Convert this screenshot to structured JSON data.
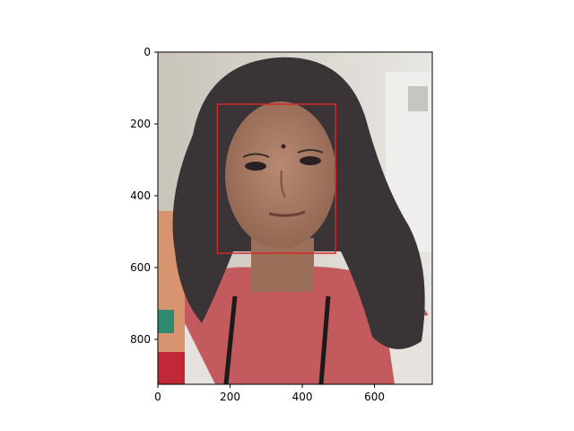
{
  "figure": {
    "type": "image-with-annotation",
    "image": {
      "subject": "portrait photo of a girl with long dark hair, red hoodie",
      "extent_x": [
        0,
        760
      ],
      "extent_y": [
        925,
        0
      ]
    },
    "axes": {
      "x_ticks": [
        0,
        200,
        400,
        600
      ],
      "y_ticks": [
        0,
        200,
        400,
        600,
        800
      ],
      "x_tick_labels": [
        "0",
        "200",
        "400",
        "600"
      ],
      "y_tick_labels": [
        "0",
        "200",
        "400",
        "600",
        "800"
      ]
    },
    "annotation": {
      "kind": "face-bounding-box",
      "color": "#d62728",
      "x0": 165,
      "y0": 145,
      "x1": 492,
      "y1": 560
    },
    "colors": {
      "background_wall": "#d8d4cc",
      "hair": "#3a3436",
      "skin": "#a97a64",
      "hoodie": "#c25a5e",
      "frame": "#000000"
    }
  }
}
